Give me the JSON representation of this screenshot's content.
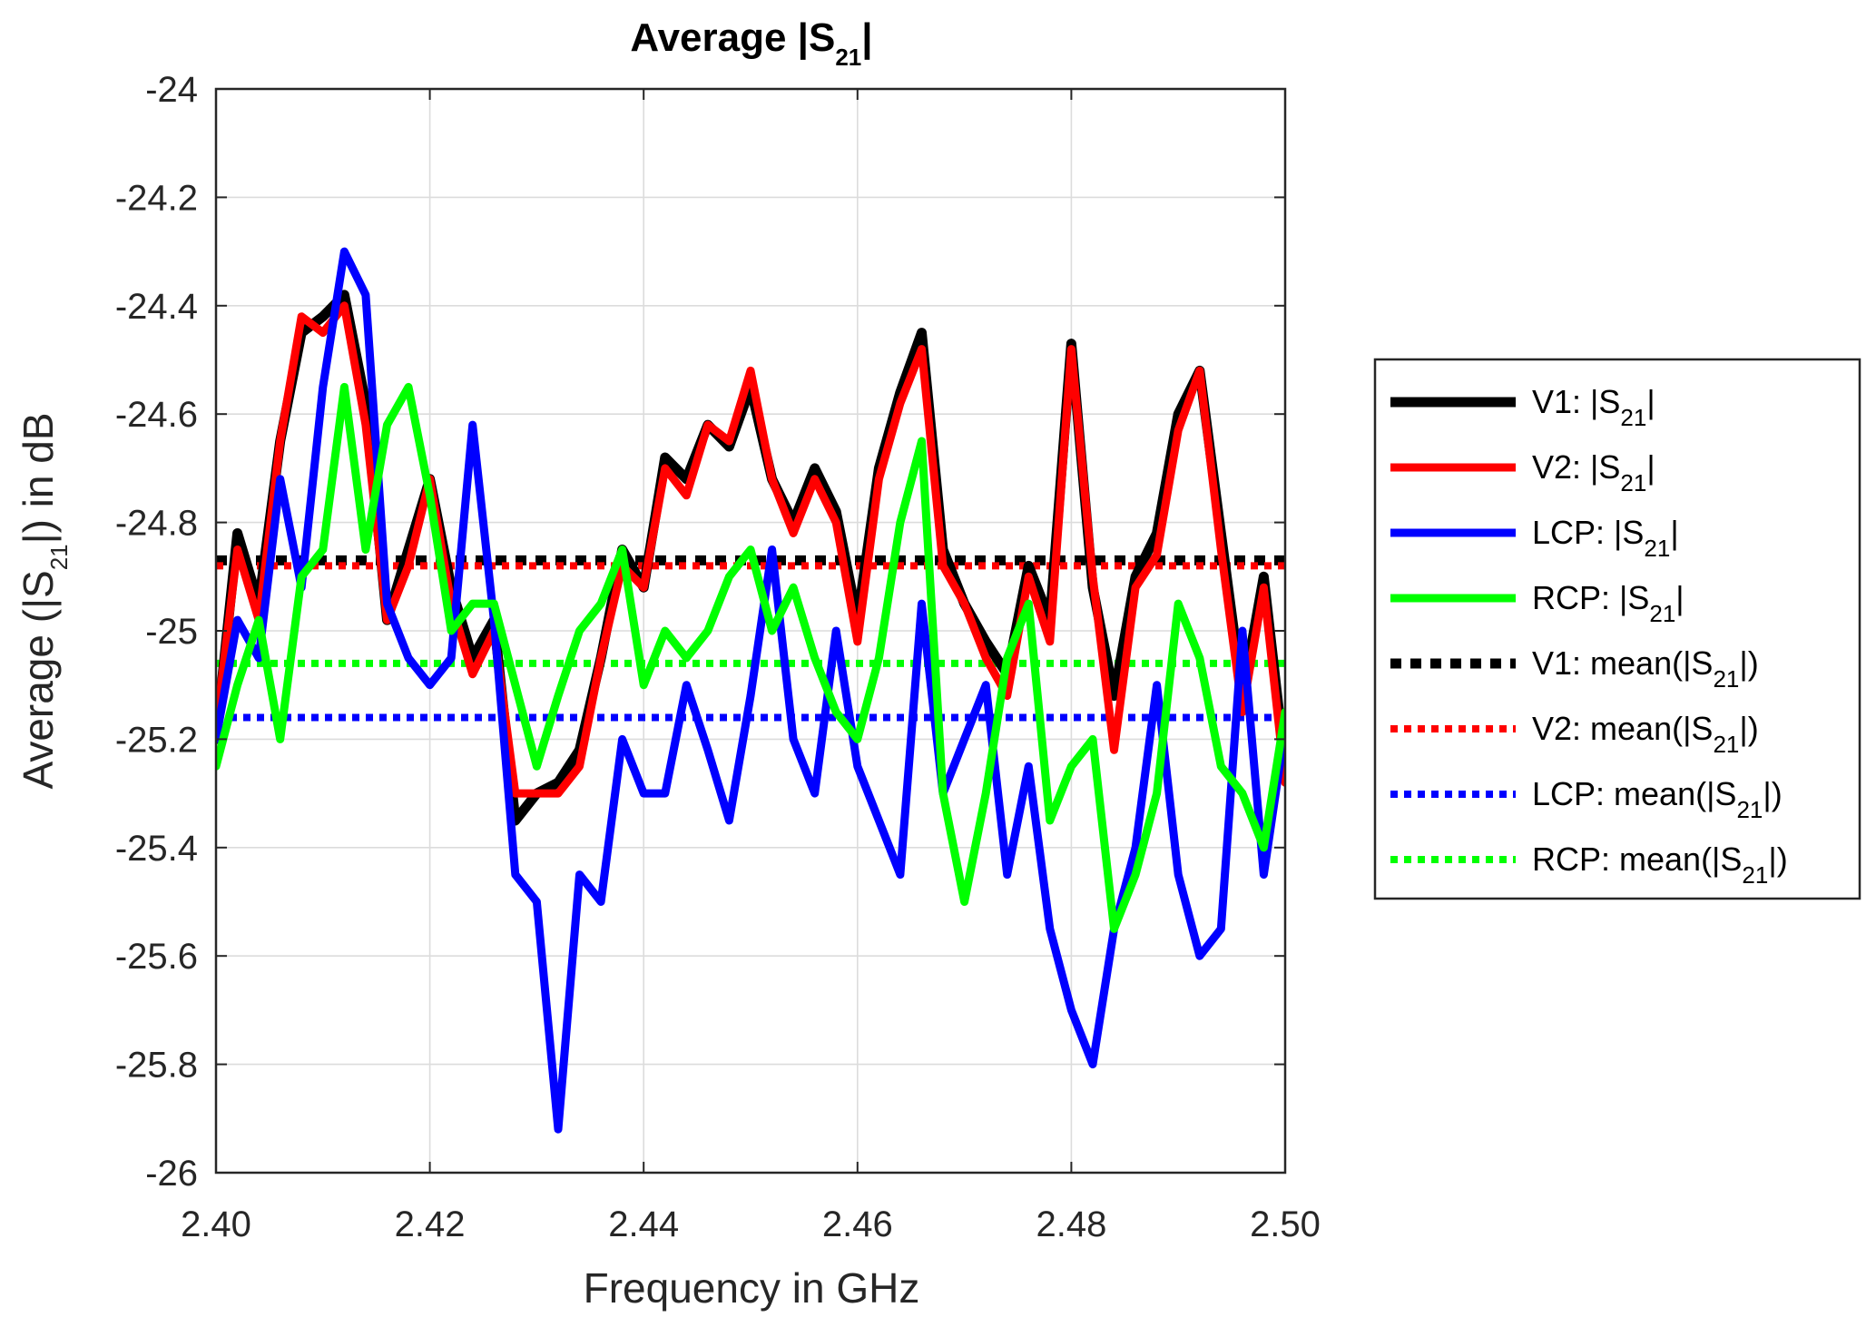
{
  "chart_data": {
    "type": "line",
    "title": "Average |S21|",
    "title_parts": [
      "Average |S",
      "21",
      "|"
    ],
    "xlabel": "Frequency in GHz",
    "ylabel_parts": [
      "Average (|S",
      "21",
      "|) in dB"
    ],
    "xlim": [
      2.4,
      2.5
    ],
    "ylim": [
      -26,
      -24
    ],
    "xticks": [
      2.4,
      2.42,
      2.44,
      2.46,
      2.48,
      2.5
    ],
    "xtick_labels": [
      "2.40",
      "2.42",
      "2.44",
      "2.46",
      "2.48",
      "2.50"
    ],
    "yticks": [
      -24,
      -24.2,
      -24.4,
      -24.6,
      -24.8,
      -25,
      -25.2,
      -25.4,
      -25.6,
      -25.8,
      -26
    ],
    "ytick_labels": [
      "-24",
      "-24.2",
      "-24.4",
      "-24.6",
      "-24.8",
      "-25",
      "-25.2",
      "-25.4",
      "-25.6",
      "-25.8",
      "-26"
    ],
    "grid": true,
    "legend_position": "outside-right",
    "x": [
      2.4,
      2.402,
      2.404,
      2.406,
      2.408,
      2.41,
      2.412,
      2.414,
      2.416,
      2.418,
      2.42,
      2.422,
      2.424,
      2.426,
      2.428,
      2.43,
      2.432,
      2.434,
      2.436,
      2.438,
      2.44,
      2.442,
      2.444,
      2.446,
      2.448,
      2.45,
      2.452,
      2.454,
      2.456,
      2.458,
      2.46,
      2.462,
      2.464,
      2.466,
      2.468,
      2.47,
      2.472,
      2.474,
      2.476,
      2.478,
      2.48,
      2.482,
      2.484,
      2.486,
      2.488,
      2.49,
      2.492,
      2.494,
      2.496,
      2.498,
      2.5
    ],
    "series": [
      {
        "name": "V1: |S21|",
        "name_parts": [
          "V1: |S",
          "21",
          "|"
        ],
        "color": "#000000",
        "style": "solid",
        "width": 11,
        "values": [
          -25.2,
          -24.82,
          -24.95,
          -24.65,
          -24.45,
          -24.42,
          -24.38,
          -24.58,
          -24.98,
          -24.85,
          -24.72,
          -24.92,
          -25.05,
          -24.98,
          -25.35,
          -25.3,
          -25.28,
          -25.22,
          -25.05,
          -24.85,
          -24.92,
          -24.68,
          -24.72,
          -24.62,
          -24.66,
          -24.55,
          -24.72,
          -24.8,
          -24.7,
          -24.78,
          -24.98,
          -24.7,
          -24.56,
          -24.45,
          -24.85,
          -24.95,
          -25.02,
          -25.08,
          -24.88,
          -24.98,
          -24.47,
          -24.92,
          -25.12,
          -24.9,
          -24.82,
          -24.6,
          -24.52,
          -24.82,
          -25.12,
          -24.9,
          -25.25
        ]
      },
      {
        "name": "V2: |S21|",
        "name_parts": [
          "V2: |S",
          "21",
          "|"
        ],
        "color": "#ff0000",
        "style": "solid",
        "width": 9,
        "values": [
          -25.18,
          -24.85,
          -24.98,
          -24.65,
          -24.42,
          -24.45,
          -24.4,
          -24.62,
          -24.98,
          -24.88,
          -24.72,
          -24.95,
          -25.08,
          -25.0,
          -25.3,
          -25.3,
          -25.3,
          -25.25,
          -25.05,
          -24.88,
          -24.92,
          -24.7,
          -24.75,
          -24.62,
          -24.65,
          -24.52,
          -24.72,
          -24.82,
          -24.72,
          -24.8,
          -25.02,
          -24.72,
          -24.58,
          -24.48,
          -24.88,
          -24.95,
          -25.05,
          -25.12,
          -24.9,
          -25.02,
          -24.48,
          -24.9,
          -25.22,
          -24.92,
          -24.86,
          -24.63,
          -24.52,
          -24.85,
          -25.15,
          -24.92,
          -25.28
        ]
      },
      {
        "name": "LCP: |S21|",
        "name_parts": [
          "LCP: |S",
          "21",
          "|"
        ],
        "color": "#0000ff",
        "style": "solid",
        "width": 9,
        "values": [
          -25.2,
          -24.98,
          -25.05,
          -24.72,
          -24.92,
          -24.55,
          -24.3,
          -24.38,
          -24.95,
          -25.05,
          -25.1,
          -25.05,
          -24.62,
          -24.98,
          -25.45,
          -25.5,
          -25.92,
          -25.45,
          -25.5,
          -25.2,
          -25.3,
          -25.3,
          -25.1,
          -25.22,
          -25.35,
          -25.12,
          -24.85,
          -25.2,
          -25.3,
          -25.0,
          -25.25,
          -25.35,
          -25.45,
          -24.95,
          -25.3,
          -25.2,
          -25.1,
          -25.45,
          -25.25,
          -25.55,
          -25.7,
          -25.8,
          -25.55,
          -25.4,
          -25.1,
          -25.45,
          -25.6,
          -25.55,
          -25.0,
          -25.45,
          -25.18
        ]
      },
      {
        "name": "RCP: |S21|",
        "name_parts": [
          "RCP: |S",
          "21",
          "|"
        ],
        "color": "#00ff00",
        "style": "solid",
        "width": 9,
        "values": [
          -25.25,
          -25.1,
          -24.98,
          -25.2,
          -24.9,
          -24.85,
          -24.55,
          -24.85,
          -24.62,
          -24.55,
          -24.75,
          -25.0,
          -24.95,
          -24.95,
          -25.1,
          -25.25,
          -25.12,
          -25.0,
          -24.95,
          -24.85,
          -25.1,
          -25.0,
          -25.05,
          -25.0,
          -24.9,
          -24.85,
          -25.0,
          -24.92,
          -25.05,
          -25.15,
          -25.2,
          -25.05,
          -24.8,
          -24.65,
          -25.3,
          -25.5,
          -25.3,
          -25.05,
          -24.95,
          -25.35,
          -25.25,
          -25.2,
          -25.55,
          -25.45,
          -25.3,
          -24.95,
          -25.05,
          -25.25,
          -25.3,
          -25.4,
          -25.15
        ]
      },
      {
        "name": "V1: mean(|S21|)",
        "name_parts": [
          "V1: mean(|S",
          "21",
          "|)"
        ],
        "color": "#000000",
        "style": "dotted",
        "width": 11,
        "mean": -24.87
      },
      {
        "name": "V2: mean(|S21|)",
        "name_parts": [
          "V2: mean(|S",
          "21",
          "|)"
        ],
        "color": "#ff0000",
        "style": "dotted",
        "width": 8,
        "mean": -24.88
      },
      {
        "name": "LCP: mean(|S21|)",
        "name_parts": [
          "LCP: mean(|S",
          "21",
          "|)"
        ],
        "color": "#0000ff",
        "style": "dotted",
        "width": 8,
        "mean": -25.16
      },
      {
        "name": "RCP: mean(|S21|)",
        "name_parts": [
          "RCP: mean(|S",
          "21",
          "|)"
        ],
        "color": "#00ff00",
        "style": "dotted",
        "width": 8,
        "mean": -25.06
      }
    ]
  }
}
